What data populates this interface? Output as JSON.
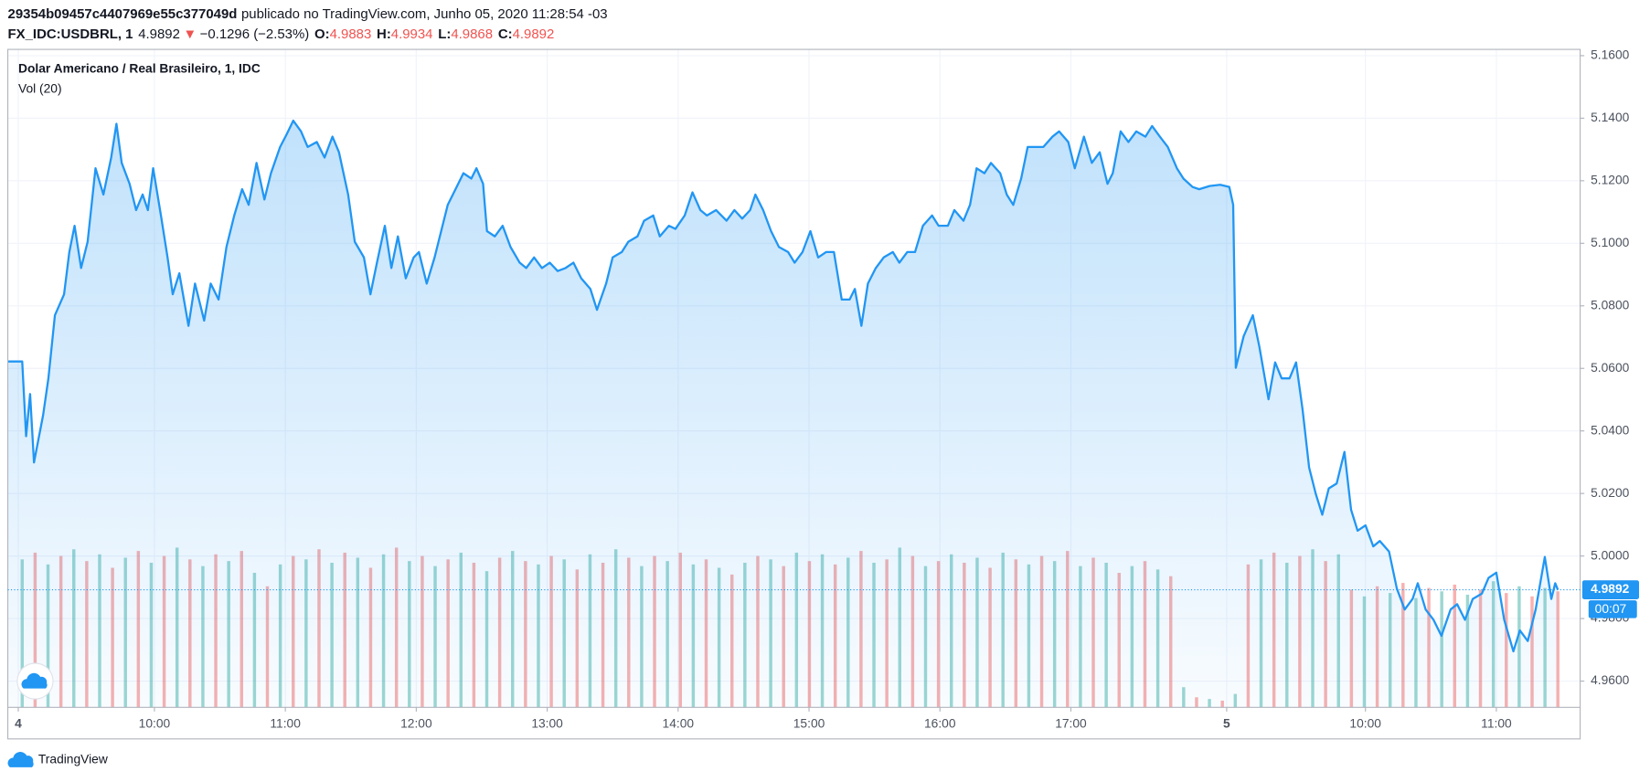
{
  "header": {
    "id": "29354b09457c4407969e55c377049d",
    "published": "publicado no TradingView.com, Junho 05, 2020 11:28:54 -03",
    "symbol": "FX_IDC:USDBRL, 1",
    "last": "4.9892",
    "arrow": "▼",
    "change": "−0.1296 (−2.53%)",
    "o_label": "O:",
    "o": "4.9883",
    "h_label": "H:",
    "h": "4.9934",
    "l_label": "L:",
    "l": "4.9868",
    "c_label": "C:",
    "c": "4.9892"
  },
  "footer": {
    "brand": "TradingView"
  },
  "chart_data": {
    "type": "area",
    "title": "Dolar Americano / Real Brasileiro, 1, IDC",
    "volume_label": "Vol (20)",
    "color": "#2196f3",
    "grid": true,
    "xlim": [
      -0.12,
      11.89
    ],
    "xticks": [
      {
        "value": -0.04,
        "label": "4"
      },
      {
        "value": 1,
        "label": "10:00"
      },
      {
        "value": 2,
        "label": "11:00"
      },
      {
        "value": 3,
        "label": "12:00"
      },
      {
        "value": 4,
        "label": "13:00"
      },
      {
        "value": 5,
        "label": "14:00"
      },
      {
        "value": 6,
        "label": "15:00"
      },
      {
        "value": 7,
        "label": "16:00"
      },
      {
        "value": 8,
        "label": "17:00"
      },
      {
        "value": 9.19,
        "label": "5"
      },
      {
        "value": 10.25,
        "label": "10:00"
      },
      {
        "value": 11.25,
        "label": "11:00"
      }
    ],
    "ylim": [
      4.9516,
      5.162
    ],
    "yticks": [
      {
        "value": 5.16,
        "label": "5.1600"
      },
      {
        "value": 5.14,
        "label": "5.1400"
      },
      {
        "value": 5.12,
        "label": "5.1200"
      },
      {
        "value": 5.1,
        "label": "5.1000"
      },
      {
        "value": 5.08,
        "label": "5.0800"
      },
      {
        "value": 5.06,
        "label": "5.0600"
      },
      {
        "value": 5.04,
        "label": "5.0400"
      },
      {
        "value": 5.02,
        "label": "5.0200"
      },
      {
        "value": 5.0,
        "label": "5.0000"
      },
      {
        "value": 4.98,
        "label": "4.9800"
      },
      {
        "value": 4.96,
        "label": "4.9600"
      }
    ],
    "last_price": {
      "value": 4.9892,
      "label": "4.9892"
    },
    "countdown": "00:07",
    "x": [
      -0.12,
      -0.01,
      0.02,
      0.05,
      0.08,
      0.15,
      0.19,
      0.24,
      0.31,
      0.35,
      0.39,
      0.44,
      0.49,
      0.55,
      0.61,
      0.67,
      0.71,
      0.75,
      0.81,
      0.86,
      0.91,
      0.95,
      0.99,
      1.05,
      1.1,
      1.14,
      1.19,
      1.26,
      1.31,
      1.38,
      1.43,
      1.49,
      1.55,
      1.61,
      1.67,
      1.72,
      1.78,
      1.84,
      1.89,
      1.96,
      2.01,
      2.06,
      2.12,
      2.17,
      2.24,
      2.3,
      2.36,
      2.41,
      2.48,
      2.53,
      2.6,
      2.65,
      2.7,
      2.76,
      2.81,
      2.86,
      2.92,
      2.98,
      3.02,
      3.08,
      3.14,
      3.18,
      3.24,
      3.3,
      3.36,
      3.42,
      3.46,
      3.51,
      3.54,
      3.6,
      3.66,
      3.72,
      3.79,
      3.84,
      3.9,
      3.96,
      4.02,
      4.08,
      4.14,
      4.2,
      4.26,
      4.33,
      4.38,
      4.45,
      4.5,
      4.57,
      4.62,
      4.69,
      4.74,
      4.81,
      4.86,
      4.93,
      4.98,
      5.05,
      5.11,
      5.17,
      5.22,
      5.29,
      5.37,
      5.43,
      5.49,
      5.55,
      5.59,
      5.65,
      5.71,
      5.77,
      5.84,
      5.89,
      5.95,
      6.01,
      6.07,
      6.13,
      6.19,
      6.25,
      6.31,
      6.35,
      6.4,
      6.45,
      6.51,
      6.57,
      6.64,
      6.69,
      6.75,
      6.81,
      6.87,
      6.94,
      6.99,
      7.06,
      7.11,
      7.18,
      7.23,
      7.28,
      7.34,
      7.39,
      7.46,
      7.51,
      7.56,
      7.62,
      7.67,
      7.74,
      7.79,
      7.86,
      7.91,
      7.98,
      8.03,
      8.1,
      8.16,
      8.22,
      8.28,
      8.32,
      8.38,
      8.44,
      8.5,
      8.57,
      8.62,
      8.68,
      8.74,
      8.81,
      8.86,
      8.93,
      8.98,
      9.06,
      9.14,
      9.21,
      9.24,
      9.26,
      9.32,
      9.39,
      9.44,
      9.51,
      9.56,
      9.61,
      9.67,
      9.72,
      9.77,
      9.82,
      9.87,
      9.92,
      9.97,
      10.03,
      10.09,
      10.14,
      10.19,
      10.25,
      10.31,
      10.36,
      10.43,
      10.49,
      10.55,
      10.61,
      10.65,
      10.71,
      10.77,
      10.83,
      10.9,
      10.95,
      11.01,
      11.07,
      11.14,
      11.19,
      11.25,
      11.31,
      11.38,
      11.43,
      11.49,
      11.55,
      11.62,
      11.67,
      11.7,
      11.72
    ],
    "values": [
      5.0622,
      5.0622,
      5.0383,
      5.0518,
      5.0299,
      5.0451,
      5.0568,
      5.077,
      5.0837,
      5.0972,
      5.1056,
      5.0921,
      5.1005,
      5.124,
      5.1156,
      5.1274,
      5.1382,
      5.1257,
      5.119,
      5.1106,
      5.1156,
      5.1106,
      5.124,
      5.1089,
      5.0955,
      5.0837,
      5.0904,
      5.0736,
      5.0871,
      5.0753,
      5.0871,
      5.082,
      5.0988,
      5.1089,
      5.1173,
      5.1123,
      5.1257,
      5.114,
      5.1224,
      5.1308,
      5.1348,
      5.1392,
      5.1358,
      5.1308,
      5.1324,
      5.1274,
      5.1341,
      5.1291,
      5.1156,
      5.1005,
      5.0955,
      5.0837,
      5.0938,
      5.1056,
      5.0921,
      5.1022,
      5.0888,
      5.0955,
      5.0972,
      5.0871,
      5.0955,
      5.1022,
      5.1123,
      5.1173,
      5.1224,
      5.1207,
      5.124,
      5.119,
      5.1039,
      5.1022,
      5.1056,
      5.0988,
      5.0938,
      5.0921,
      5.0955,
      5.0921,
      5.0938,
      5.0911,
      5.0921,
      5.0938,
      5.0888,
      5.0854,
      5.0787,
      5.0871,
      5.0955,
      5.0972,
      5.1005,
      5.1022,
      5.1072,
      5.1089,
      5.1022,
      5.1056,
      5.1046,
      5.1089,
      5.1163,
      5.1106,
      5.1089,
      5.1106,
      5.1072,
      5.1106,
      5.1079,
      5.1106,
      5.1156,
      5.1106,
      5.1039,
      5.0988,
      5.0972,
      5.0938,
      5.0972,
      5.1039,
      5.0955,
      5.0972,
      5.0972,
      5.082,
      5.082,
      5.0854,
      5.0736,
      5.0871,
      5.0921,
      5.0955,
      5.0972,
      5.0938,
      5.0972,
      5.0972,
      5.1056,
      5.1089,
      5.1056,
      5.1056,
      5.1106,
      5.1072,
      5.1123,
      5.124,
      5.1224,
      5.1257,
      5.1224,
      5.1156,
      5.1123,
      5.1207,
      5.1308,
      5.1308,
      5.1308,
      5.1341,
      5.1358,
      5.1324,
      5.124,
      5.1341,
      5.1257,
      5.1291,
      5.119,
      5.1224,
      5.1358,
      5.1324,
      5.1358,
      5.1341,
      5.1375,
      5.1341,
      5.1308,
      5.124,
      5.1207,
      5.118,
      5.1173,
      5.1183,
      5.1187,
      5.118,
      5.1123,
      5.0602,
      5.0703,
      5.077,
      5.0669,
      5.0501,
      5.0619,
      5.0568,
      5.0568,
      5.0619,
      5.0468,
      5.0283,
      5.0199,
      5.0132,
      5.0216,
      5.0232,
      5.0333,
      5.0148,
      5.0081,
      5.0098,
      5.0031,
      5.0048,
      5.0014,
      4.9896,
      4.9829,
      4.9863,
      4.9913,
      4.9829,
      4.9796,
      4.9745,
      4.9829,
      4.9846,
      4.9796,
      4.9863,
      4.988,
      4.993,
      4.9947,
      4.9796,
      4.9695,
      4.9762,
      4.9728,
      4.9829,
      4.9997,
      4.9863,
      4.9913,
      4.9892
    ],
    "volume": {
      "colors": [
        "#26a69a",
        "#ef5350"
      ],
      "vlim": [
        0,
        100
      ],
      "values": [
        88,
        92,
        85,
        90,
        94,
        87,
        91,
        83,
        89,
        93,
        86,
        90,
        95,
        88,
        84,
        91,
        87,
        93,
        80,
        72,
        85,
        90,
        88,
        94,
        86,
        92,
        89,
        83,
        91,
        95,
        87,
        90,
        84,
        88,
        92,
        86,
        81,
        89,
        93,
        87,
        85,
        90,
        88,
        82,
        91,
        86,
        94,
        89,
        84,
        90,
        87,
        92,
        85,
        88,
        83,
        79,
        86,
        90,
        88,
        84,
        92,
        87,
        91,
        85,
        89,
        93,
        86,
        88,
        95,
        90,
        84,
        87,
        91,
        86,
        89,
        83,
        92,
        88,
        85,
        90,
        87,
        93,
        84,
        89,
        86,
        80,
        84,
        87,
        82,
        78,
        12,
        6,
        5,
        4,
        8,
        85,
        88,
        92,
        86,
        90,
        94,
        87,
        91,
        70,
        66,
        72,
        68,
        74,
        65,
        71,
        69,
        73,
        67,
        70,
        75,
        68,
        72,
        66,
        71,
        69
      ]
    }
  }
}
